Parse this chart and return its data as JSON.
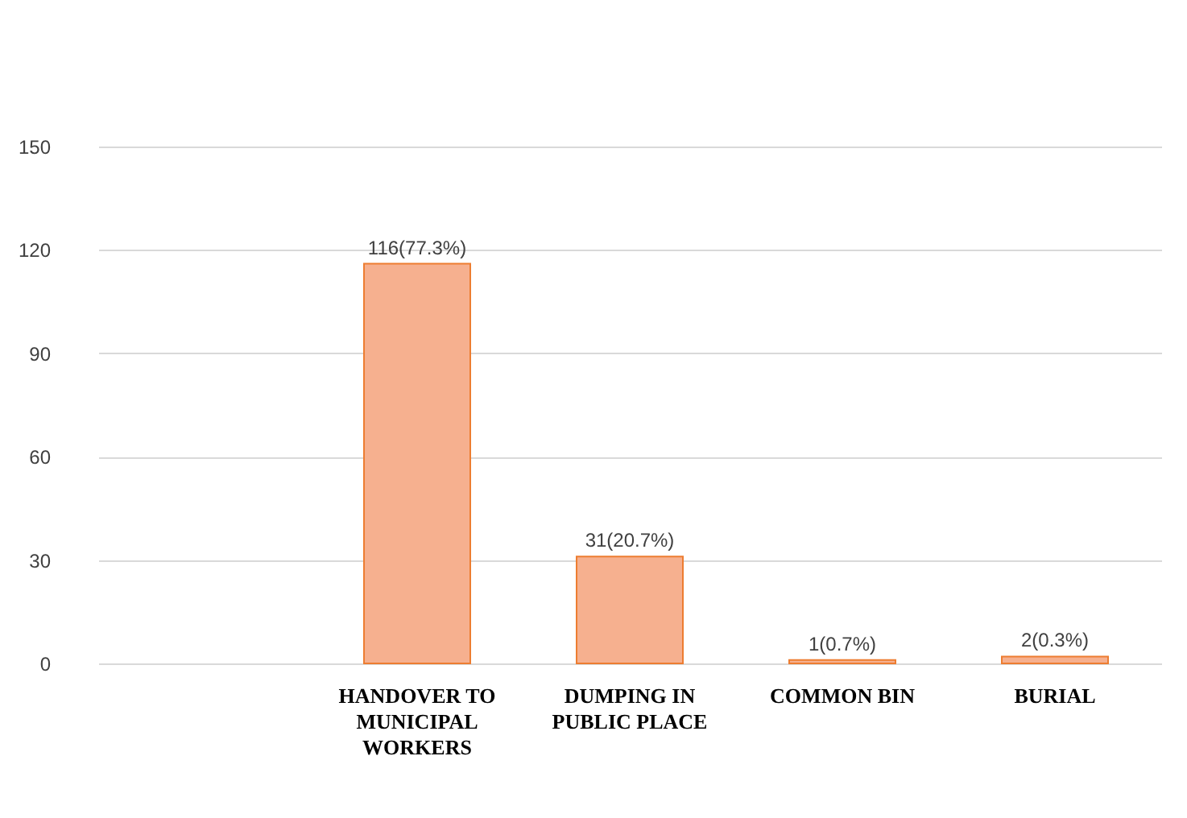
{
  "chart_data": {
    "type": "bar",
    "categories": [
      null,
      "HANDOVER TO MUNICIPAL WORKERS",
      "DUMPING IN PUBLIC PLACE",
      "COMMON BIN",
      "BURIAL"
    ],
    "values": [
      null,
      116,
      31,
      1,
      2
    ],
    "value_labels": [
      null,
      "116(77.3%)",
      "31(20.7%)",
      "1(0.7%)",
      "2(0.3%)"
    ],
    "color": "#f6b08f",
    "ylim": [
      0,
      150
    ],
    "yticks": [
      0,
      30,
      60,
      90,
      120,
      150
    ],
    "grid": "y"
  }
}
